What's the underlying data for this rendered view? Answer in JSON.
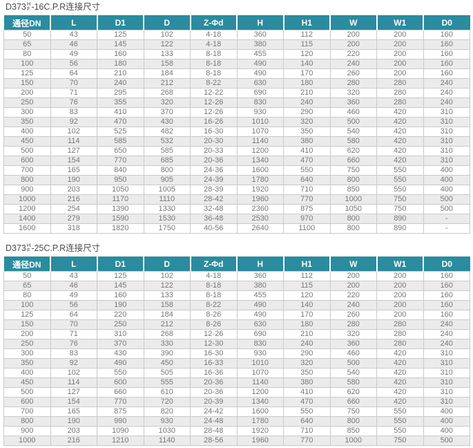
{
  "colors": {
    "header_bg": "#2a8c9e",
    "header_text": "#ffffff",
    "row_alt_bg": "#ebebeb",
    "cell_text": "#777777",
    "border": "#c9c9c9",
    "title_text": "#4a4a4a"
  },
  "tables": [
    {
      "title_prefix": "D373",
      "title_stack_top": "H",
      "title_stack_bottom": "F",
      "title_suffix": "-16C.P.R连接尺寸",
      "headers": [
        "通径DN",
        "L",
        "D1",
        "D",
        "Z-Φd",
        "H",
        "H1",
        "W",
        "W1",
        "D0"
      ],
      "rows": [
        [
          "50",
          "43",
          "125",
          "102",
          "4-18",
          "360",
          "112",
          "200",
          "200",
          "160"
        ],
        [
          "65",
          "46",
          "145",
          "122",
          "4-18",
          "380",
          "115",
          "200",
          "200",
          "160"
        ],
        [
          "80",
          "49",
          "160",
          "133",
          "8-18",
          "455",
          "120",
          "220",
          "200",
          "160"
        ],
        [
          "100",
          "56",
          "180",
          "158",
          "8-18",
          "490",
          "140",
          "240",
          "200",
          "160"
        ],
        [
          "125",
          "64",
          "210",
          "184",
          "8-18",
          "490",
          "170",
          "260",
          "200",
          "160"
        ],
        [
          "150",
          "70",
          "240",
          "212",
          "8-22",
          "630",
          "180",
          "280",
          "280",
          "240"
        ],
        [
          "200",
          "71",
          "295",
          "268",
          "12-22",
          "690",
          "210",
          "320",
          "280",
          "240"
        ],
        [
          "250",
          "76",
          "355",
          "320",
          "12-26",
          "830",
          "240",
          "360",
          "280",
          "240"
        ],
        [
          "300",
          "83",
          "410",
          "370",
          "12-26",
          "930",
          "290",
          "460",
          "420",
          "310"
        ],
        [
          "350",
          "92",
          "470",
          "430",
          "16-26",
          "1010",
          "320",
          "500",
          "420",
          "310"
        ],
        [
          "400",
          "102",
          "525",
          "482",
          "16-30",
          "1070",
          "350",
          "540",
          "420",
          "310"
        ],
        [
          "450",
          "114",
          "585",
          "532",
          "20-30",
          "1140",
          "380",
          "580",
          "420",
          "310"
        ],
        [
          "500",
          "127",
          "650",
          "585",
          "20-33",
          "1200",
          "410",
          "620",
          "420",
          "310"
        ],
        [
          "600",
          "154",
          "770",
          "685",
          "20-36",
          "1340",
          "470",
          "660",
          "420",
          "310"
        ],
        [
          "700",
          "165",
          "840",
          "800",
          "24-36",
          "1600",
          "550",
          "750",
          "550",
          "400"
        ],
        [
          "800",
          "190",
          "950",
          "905",
          "24-39",
          "1780",
          "640",
          "800",
          "550",
          "400"
        ],
        [
          "900",
          "203",
          "1050",
          "1005",
          "28-39",
          "1920",
          "710",
          "850",
          "550",
          "400"
        ],
        [
          "1000",
          "216",
          "1170",
          "1110",
          "28-42",
          "1960",
          "770",
          "1000",
          "750",
          "500"
        ],
        [
          "1200",
          "254",
          "1390",
          "1330",
          "32-48",
          "2360",
          "875",
          "1050",
          "750",
          "500"
        ],
        [
          "1400",
          "279",
          "1590",
          "1530",
          "36-48",
          "2530",
          "970",
          "800",
          "890",
          "-"
        ],
        [
          "1600",
          "318",
          "1820",
          "1750",
          "40-56",
          "2640",
          "1100",
          "800",
          "890",
          "-"
        ]
      ]
    },
    {
      "title_prefix": "D373",
      "title_stack_top": "H",
      "title_stack_bottom": "F",
      "title_suffix": "-25C.P.R连接尺寸",
      "headers": [
        "通径DN",
        "L",
        "D1",
        "D",
        "Z-Φd",
        "H",
        "H1",
        "W",
        "W1",
        "D0"
      ],
      "rows": [
        [
          "50",
          "43",
          "125",
          "102",
          "4-18",
          "360",
          "112",
          "200",
          "200",
          "160"
        ],
        [
          "65",
          "46",
          "145",
          "122",
          "8-18",
          "380",
          "115",
          "200",
          "200",
          "160"
        ],
        [
          "80",
          "49",
          "160",
          "133",
          "8-18",
          "455",
          "120",
          "220",
          "200",
          "160"
        ],
        [
          "100",
          "56",
          "190",
          "158",
          "8-22",
          "490",
          "140",
          "240",
          "200",
          "160"
        ],
        [
          "125",
          "64",
          "220",
          "184",
          "8-26",
          "490",
          "170",
          "260",
          "200",
          "160"
        ],
        [
          "150",
          "70",
          "250",
          "212",
          "8-26",
          "630",
          "180",
          "280",
          "280",
          "240"
        ],
        [
          "200",
          "71",
          "310",
          "268",
          "12-26",
          "690",
          "210",
          "320",
          "280",
          "240"
        ],
        [
          "250",
          "76",
          "370",
          "330",
          "12-30",
          "830",
          "240",
          "360",
          "280",
          "240"
        ],
        [
          "300",
          "83",
          "430",
          "390",
          "16-30",
          "930",
          "290",
          "460",
          "420",
          "310"
        ],
        [
          "350",
          "92",
          "490",
          "450",
          "16-33",
          "1010",
          "320",
          "500",
          "420",
          "310"
        ],
        [
          "400",
          "102",
          "550",
          "505",
          "16-36",
          "1070",
          "350",
          "540",
          "420",
          "310"
        ],
        [
          "450",
          "114",
          "600",
          "555",
          "20-36",
          "1140",
          "380",
          "580",
          "420",
          "310"
        ],
        [
          "500",
          "127",
          "660",
          "610",
          "20-36",
          "1200",
          "410",
          "620",
          "420",
          "310"
        ],
        [
          "600",
          "154",
          "770",
          "720",
          "20-39",
          "1340",
          "470",
          "660",
          "420",
          "310"
        ],
        [
          "700",
          "165",
          "875",
          "820",
          "24-42",
          "1600",
          "550",
          "750",
          "550",
          "400"
        ],
        [
          "800",
          "190",
          "990",
          "930",
          "24-48",
          "1780",
          "640",
          "800",
          "550",
          "400"
        ],
        [
          "900",
          "203",
          "1090",
          "1030",
          "28-48",
          "1920",
          "710",
          "850",
          "550",
          "400"
        ],
        [
          "1000",
          "216",
          "1210",
          "1140",
          "28-56",
          "1960",
          "770",
          "1000",
          "750",
          "500"
        ]
      ]
    }
  ]
}
